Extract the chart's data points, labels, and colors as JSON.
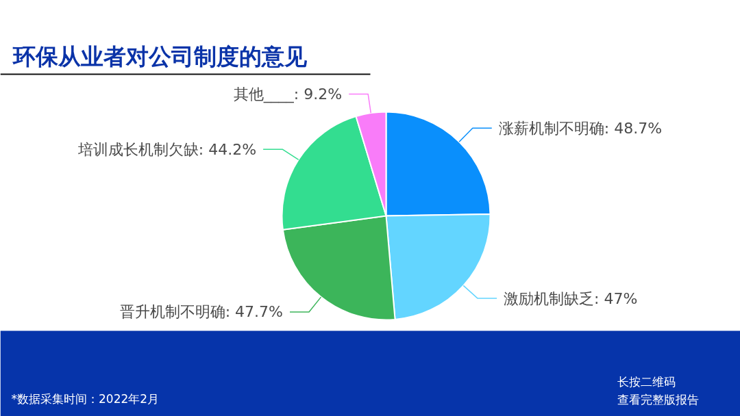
{
  "chart_data": {
    "type": "pie",
    "title": "环保从业者对公司制度的意见",
    "categories": [
      "涨薪机制不明确",
      "激励机制缺乏",
      "晋升机制不明确",
      "培训成长机制欠缺",
      "其他____"
    ],
    "values": [
      48.7,
      47,
      47.7,
      44.2,
      9.2
    ],
    "colors": [
      "#0a8ffc",
      "#63d5ff",
      "#3cb55a",
      "#33dd90",
      "#f97cf9"
    ],
    "value_labels": [
      "48.7%",
      "47%",
      "47.7%",
      "44.2%",
      "9.2%"
    ],
    "annotations": [
      "*数据采集时间：2022年2月",
      "长按二维码",
      "查看完整版报告"
    ]
  }
}
